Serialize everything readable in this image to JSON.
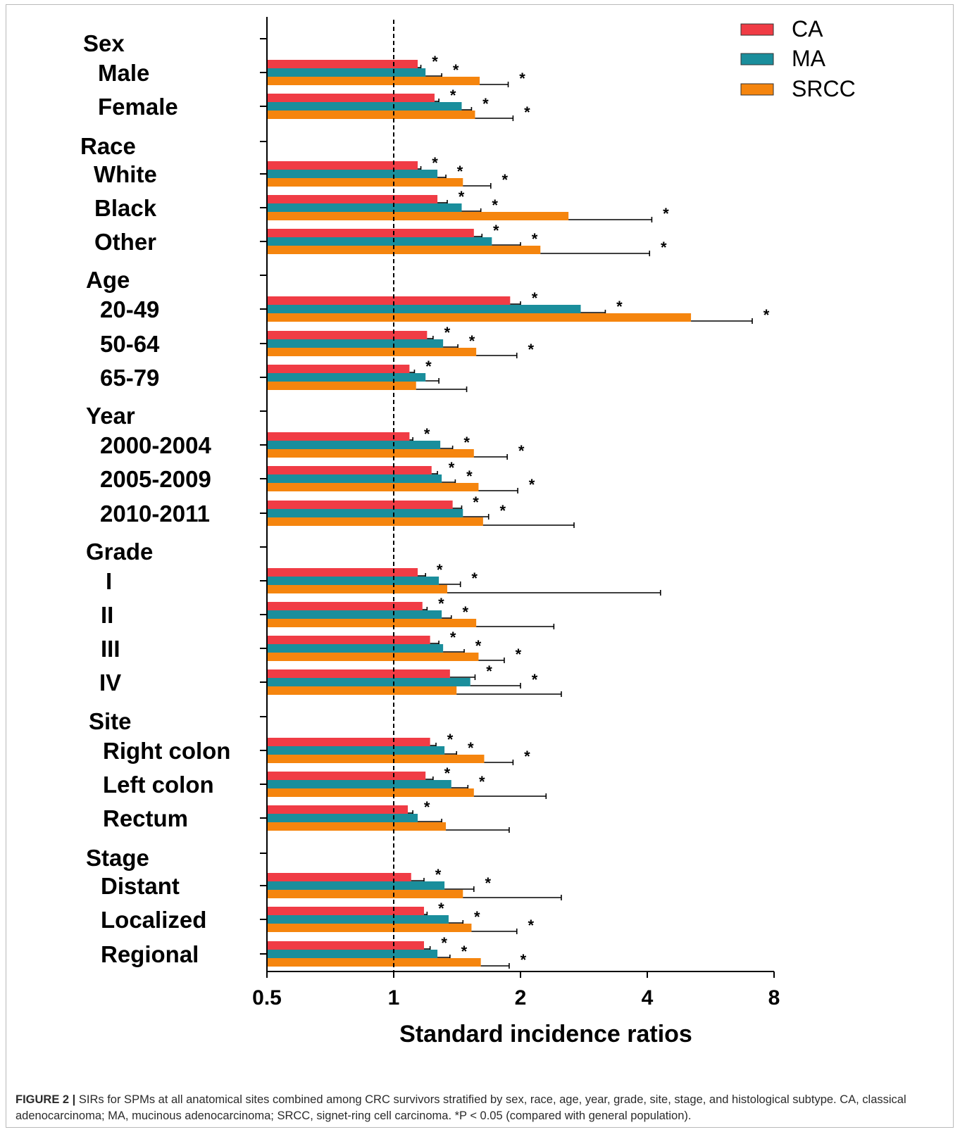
{
  "chart_data": {
    "type": "bar",
    "orientation": "horizontal",
    "xscale": "log2",
    "xlabel": "Standard incidence ratios",
    "xlim": [
      0.5,
      8
    ],
    "xticks": [
      0.5,
      1,
      2,
      4,
      8
    ],
    "x_tick_labels": [
      "0.5",
      "1",
      "2",
      "4",
      "8"
    ],
    "reference_line": 1,
    "legend_position": "top-right",
    "series": [
      {
        "name": "CA",
        "color": "#f03c45"
      },
      {
        "name": "MA",
        "color": "#1a8e9c"
      },
      {
        "name": "SRCC",
        "color": "#f5850e"
      }
    ],
    "groups": [
      {
        "label": "Sex",
        "rows": [
          {
            "label": "Male",
            "values": [
              {
                "sir": 1.14,
                "upper": 1.16,
                "sig": true
              },
              {
                "sir": 1.19,
                "upper": 1.3,
                "sig": true
              },
              {
                "sir": 1.6,
                "upper": 1.87,
                "sig": true
              }
            ]
          },
          {
            "label": "Female",
            "values": [
              {
                "sir": 1.25,
                "upper": 1.28,
                "sig": true
              },
              {
                "sir": 1.45,
                "upper": 1.53,
                "sig": true
              },
              {
                "sir": 1.56,
                "upper": 1.92,
                "sig": true
              }
            ]
          }
        ]
      },
      {
        "label": "Race",
        "rows": [
          {
            "label": "White",
            "values": [
              {
                "sir": 1.14,
                "upper": 1.16,
                "sig": true
              },
              {
                "sir": 1.27,
                "upper": 1.33,
                "sig": true
              },
              {
                "sir": 1.46,
                "upper": 1.7,
                "sig": true
              }
            ]
          },
          {
            "label": "Black",
            "values": [
              {
                "sir": 1.27,
                "upper": 1.34,
                "sig": true
              },
              {
                "sir": 1.45,
                "upper": 1.61,
                "sig": true
              },
              {
                "sir": 2.6,
                "upper": 4.1,
                "sig": true
              }
            ]
          },
          {
            "label": "Other",
            "values": [
              {
                "sir": 1.55,
                "upper": 1.62,
                "sig": true
              },
              {
                "sir": 1.71,
                "upper": 2.0,
                "sig": true
              },
              {
                "sir": 2.23,
                "upper": 4.05,
                "sig": true
              }
            ]
          }
        ]
      },
      {
        "label": "Age",
        "rows": [
          {
            "label": "20-49",
            "values": [
              {
                "sir": 1.89,
                "upper": 2.0,
                "sig": true
              },
              {
                "sir": 2.78,
                "upper": 3.18,
                "sig": true
              },
              {
                "sir": 5.08,
                "upper": 7.1,
                "sig": true
              }
            ]
          },
          {
            "label": "50-64",
            "values": [
              {
                "sir": 1.2,
                "upper": 1.24,
                "sig": true
              },
              {
                "sir": 1.31,
                "upper": 1.42,
                "sig": true
              },
              {
                "sir": 1.57,
                "upper": 1.96,
                "sig": true
              }
            ]
          },
          {
            "label": "65-79",
            "values": [
              {
                "sir": 1.09,
                "upper": 1.12,
                "sig": true
              },
              {
                "sir": 1.19,
                "upper": 1.28,
                "sig": false
              },
              {
                "sir": 1.13,
                "upper": 1.49,
                "sig": false
              }
            ]
          }
        ]
      },
      {
        "label": "Year",
        "rows": [
          {
            "label": "2000-2004",
            "values": [
              {
                "sir": 1.09,
                "upper": 1.11,
                "sig": true
              },
              {
                "sir": 1.29,
                "upper": 1.38,
                "sig": true
              },
              {
                "sir": 1.55,
                "upper": 1.86,
                "sig": true
              }
            ]
          },
          {
            "label": "2005-2009",
            "values": [
              {
                "sir": 1.23,
                "upper": 1.27,
                "sig": true
              },
              {
                "sir": 1.3,
                "upper": 1.4,
                "sig": true
              },
              {
                "sir": 1.59,
                "upper": 1.97,
                "sig": true
              }
            ]
          },
          {
            "label": "2010-2011",
            "values": [
              {
                "sir": 1.38,
                "upper": 1.45,
                "sig": true
              },
              {
                "sir": 1.46,
                "upper": 1.68,
                "sig": true
              },
              {
                "sir": 1.63,
                "upper": 2.68,
                "sig": false
              }
            ]
          }
        ]
      },
      {
        "label": "Grade",
        "rows": [
          {
            "label": "I",
            "values": [
              {
                "sir": 1.14,
                "upper": 1.19,
                "sig": true
              },
              {
                "sir": 1.28,
                "upper": 1.44,
                "sig": true
              },
              {
                "sir": 1.34,
                "upper": 4.3,
                "sig": false
              }
            ]
          },
          {
            "label": "II",
            "values": [
              {
                "sir": 1.17,
                "upper": 1.2,
                "sig": true
              },
              {
                "sir": 1.3,
                "upper": 1.37,
                "sig": true
              },
              {
                "sir": 1.57,
                "upper": 2.4,
                "sig": false
              }
            ]
          },
          {
            "label": "III",
            "values": [
              {
                "sir": 1.22,
                "upper": 1.28,
                "sig": true
              },
              {
                "sir": 1.31,
                "upper": 1.47,
                "sig": true
              },
              {
                "sir": 1.59,
                "upper": 1.83,
                "sig": true
              }
            ]
          },
          {
            "label": "IV",
            "values": [
              {
                "sir": 1.36,
                "upper": 1.56,
                "sig": true
              },
              {
                "sir": 1.52,
                "upper": 2.0,
                "sig": true
              },
              {
                "sir": 1.41,
                "upper": 2.5,
                "sig": false
              }
            ]
          }
        ]
      },
      {
        "label": "Site",
        "rows": [
          {
            "label": "Right colon",
            "values": [
              {
                "sir": 1.22,
                "upper": 1.26,
                "sig": true
              },
              {
                "sir": 1.32,
                "upper": 1.41,
                "sig": true
              },
              {
                "sir": 1.64,
                "upper": 1.92,
                "sig": true
              }
            ]
          },
          {
            "label": "Left colon",
            "values": [
              {
                "sir": 1.19,
                "upper": 1.24,
                "sig": true
              },
              {
                "sir": 1.37,
                "upper": 1.5,
                "sig": true
              },
              {
                "sir": 1.55,
                "upper": 2.3,
                "sig": false
              }
            ]
          },
          {
            "label": "Rectum",
            "values": [
              {
                "sir": 1.08,
                "upper": 1.11,
                "sig": true
              },
              {
                "sir": 1.14,
                "upper": 1.3,
                "sig": false
              },
              {
                "sir": 1.33,
                "upper": 1.88,
                "sig": false
              }
            ]
          }
        ]
      },
      {
        "label": "Stage",
        "rows": [
          {
            "label": "Distant",
            "values": [
              {
                "sir": 1.1,
                "upper": 1.18,
                "sig": true
              },
              {
                "sir": 1.32,
                "upper": 1.55,
                "sig": true
              },
              {
                "sir": 1.46,
                "upper": 2.5,
                "sig": false
              }
            ]
          },
          {
            "label": "Localized",
            "values": [
              {
                "sir": 1.18,
                "upper": 1.2,
                "sig": true
              },
              {
                "sir": 1.35,
                "upper": 1.46,
                "sig": true
              },
              {
                "sir": 1.53,
                "upper": 1.96,
                "sig": true
              }
            ]
          },
          {
            "label": "Regional",
            "values": [
              {
                "sir": 1.18,
                "upper": 1.22,
                "sig": true
              },
              {
                "sir": 1.27,
                "upper": 1.36,
                "sig": true
              },
              {
                "sir": 1.61,
                "upper": 1.88,
                "sig": true
              }
            ]
          }
        ]
      }
    ]
  },
  "caption": {
    "lead": "FIGURE 2 |",
    "text": " SIRs for SPMs at all anatomical sites combined among CRC survivors stratified by sex, race, age, year, grade, site, stage, and histological subtype. CA, classical adenocarcinoma; MA, mucinous adenocarcinoma; SRCC, signet-ring cell carcinoma. *P < 0.05 (compared with general population)."
  },
  "star_symbol": "*"
}
